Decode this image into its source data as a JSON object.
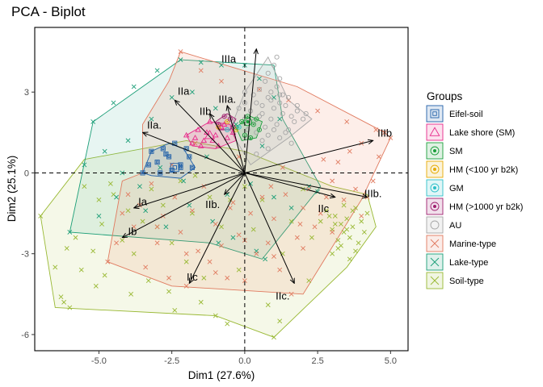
{
  "chart_data": {
    "type": "scatter",
    "title": "PCA - Biplot",
    "xlabel": "Dim1 (27.6%)",
    "ylabel": "Dim2 (25.1%)",
    "xlim": [
      -7.2,
      5.6
    ],
    "ylim": [
      -6.6,
      5.4
    ],
    "xticks": [
      -5.0,
      -2.5,
      0.0,
      2.5,
      5.0
    ],
    "xtick_labels": [
      "-5.0",
      "-2.5",
      "0.0",
      "2.5",
      "5.0"
    ],
    "yticks": [
      3,
      0,
      -3,
      -6
    ],
    "ytick_labels": [
      "3",
      "0",
      "-3",
      "-6"
    ],
    "grid": false,
    "reference_lines": [
      {
        "axis": "x",
        "value": 0,
        "style": "dashed"
      },
      {
        "axis": "y",
        "value": 0,
        "style": "dashed"
      }
    ],
    "legend": {
      "title": "Groups",
      "placement": "right",
      "entries": [
        {
          "label": "Eifel-soil",
          "color": "#1f5fa8",
          "marker": "square-dot"
        },
        {
          "label": "Lake shore (SM)",
          "color": "#e7298a",
          "marker": "triangle"
        },
        {
          "label": "SM",
          "color": "#1b9e3a",
          "marker": "circle-dot"
        },
        {
          "label": "HM (<100 yr b2k)",
          "color": "#e6ab02",
          "marker": "circle-dot"
        },
        {
          "label": "GM",
          "color": "#2cbfc8",
          "marker": "circle-dot"
        },
        {
          "label": "HM (>1000 yr b2k)",
          "color": "#9e1e6e",
          "marker": "circle-dot"
        },
        {
          "label": "AU",
          "color": "#a6a6a6",
          "marker": "circle"
        },
        {
          "label": "Marine-type",
          "color": "#e07a5f",
          "marker": "x"
        },
        {
          "label": "Lake-type",
          "color": "#1b9e77",
          "marker": "x"
        },
        {
          "label": "Soil-type",
          "color": "#98b832",
          "marker": "x"
        }
      ]
    },
    "hulls": [
      {
        "group": "Soil-type",
        "color": "#98b832",
        "fill": "#b8cc5a",
        "points": [
          [
            -5.5,
            0.5
          ],
          [
            -2.0,
            1.2
          ],
          [
            0.0,
            0.8
          ],
          [
            3.0,
            -0.5
          ],
          [
            4.2,
            -0.8
          ],
          [
            4.5,
            -2.0
          ],
          [
            3.5,
            -3.5
          ],
          [
            1.0,
            -6.1
          ],
          [
            -1.0,
            -5.3
          ],
          [
            -6.5,
            -5.0
          ],
          [
            -7.0,
            -1.6
          ]
        ]
      },
      {
        "group": "Lake-type",
        "color": "#1b9e77",
        "fill": "#57b8a0",
        "points": [
          [
            -5.2,
            1.9
          ],
          [
            -2.2,
            4.2
          ],
          [
            1.0,
            4.0
          ],
          [
            1.3,
            2.0
          ],
          [
            2.6,
            -0.5
          ],
          [
            0.6,
            -3.2
          ],
          [
            -1.2,
            -2.6
          ],
          [
            -6.0,
            -2.2
          ]
        ]
      },
      {
        "group": "Marine-type",
        "color": "#e07a5f",
        "fill": "#ef8a62",
        "points": [
          [
            -2.2,
            4.5
          ],
          [
            1.8,
            3.2
          ],
          [
            4.8,
            1.5
          ],
          [
            5.0,
            1.3
          ],
          [
            4.0,
            -1.0
          ],
          [
            2.0,
            -4.5
          ],
          [
            -2.5,
            -4.2
          ],
          [
            -4.7,
            -3.3
          ],
          [
            -4.2,
            -0.3
          ],
          [
            -3.5,
            0.0
          ],
          [
            -3.5,
            1.8
          ],
          [
            -2.6,
            3.4
          ]
        ]
      },
      {
        "group": "AU",
        "color": "#a6a6a6",
        "fill": "#bdbdbd",
        "points": [
          [
            0.8,
            4.3
          ],
          [
            1.5,
            2.7
          ],
          [
            2.3,
            2.0
          ],
          [
            1.5,
            1.3
          ],
          [
            0.2,
            0.3
          ],
          [
            -0.5,
            1.6
          ],
          [
            0.0,
            3.0
          ]
        ]
      },
      {
        "group": "Eifel-soil",
        "color": "#1f5fa8",
        "fill": "#4f7fc0",
        "points": [
          [
            -3.5,
            0.0
          ],
          [
            -3.2,
            0.8
          ],
          [
            -2.6,
            1.1
          ],
          [
            -2.1,
            0.9
          ],
          [
            -1.7,
            0.2
          ],
          [
            -2.2,
            -0.2
          ],
          [
            -3.2,
            -0.1
          ]
        ]
      },
      {
        "group": "Lake shore (SM)",
        "color": "#e7298a",
        "fill": "#e7298a",
        "points": [
          [
            -2.0,
            1.4
          ],
          [
            -1.2,
            1.9
          ],
          [
            -0.5,
            1.8
          ],
          [
            -0.3,
            1.2
          ],
          [
            -1.0,
            0.9
          ],
          [
            -1.8,
            1.0
          ]
        ]
      },
      {
        "group": "SM",
        "color": "#1b9e3a",
        "fill": "#1b9e3a",
        "points": [
          [
            -0.3,
            1.7
          ],
          [
            0.2,
            2.1
          ],
          [
            0.6,
            1.9
          ],
          [
            0.4,
            1.3
          ],
          [
            -0.1,
            1.2
          ]
        ]
      },
      {
        "group": "HM (>1000 yr b2k)",
        "color": "#9e1e6e",
        "fill": "#9e1e6e",
        "points": [
          [
            -1.0,
            1.9
          ],
          [
            -0.6,
            2.2
          ],
          [
            -0.3,
            2.0
          ],
          [
            -0.5,
            1.6
          ],
          [
            -0.9,
            1.6
          ]
        ]
      }
    ],
    "variables": [
      {
        "name": "IIIa",
        "x": 0.4,
        "y": 4.6,
        "label_x": -0.55,
        "label_y": 4.2
      },
      {
        "name": "IIa",
        "x": -2.4,
        "y": 2.7,
        "label_x": -2.1,
        "label_y": 3.0
      },
      {
        "name": "IIIa.",
        "x": -0.6,
        "y": 2.5,
        "label_x": -0.6,
        "label_y": 2.7
      },
      {
        "name": "IIb",
        "x": -1.2,
        "y": 2.2,
        "label_x": -1.35,
        "label_y": 2.25
      },
      {
        "name": "IIa.",
        "x": -3.5,
        "y": 1.5,
        "label_x": -3.1,
        "label_y": 1.75
      },
      {
        "name": "IIIb",
        "x": 4.4,
        "y": 1.2,
        "label_x": 4.8,
        "label_y": 1.45
      },
      {
        "name": "IIIb.",
        "x": 4.2,
        "y": -0.9,
        "label_x": 4.4,
        "label_y": -0.8
      },
      {
        "name": "IIc",
        "x": 3.1,
        "y": -0.9,
        "label_x": 2.7,
        "label_y": -1.35
      },
      {
        "name": "IIb.",
        "x": -0.7,
        "y": -0.8,
        "label_x": -1.1,
        "label_y": -1.2
      },
      {
        "name": "Ia",
        "x": -3.8,
        "y": -1.3,
        "label_x": -3.5,
        "label_y": -1.1
      },
      {
        "name": "Ib",
        "x": -4.2,
        "y": -2.4,
        "label_x": -3.85,
        "label_y": -2.2
      },
      {
        "name": "IIc.",
        "x": 1.7,
        "y": -4.1,
        "label_x": 1.3,
        "label_y": -4.6
      },
      {
        "name": "IIc",
        "x": -1.9,
        "y": -4.1,
        "label_x": -1.8,
        "label_y": -3.9
      }
    ],
    "series": [
      {
        "group": "Soil-type",
        "marker": "x",
        "color": "#98b832",
        "x": [
          -7.0,
          -6.5,
          -6.2,
          -6.0,
          -5.8,
          -5.5,
          -5.2,
          -5.0,
          -4.8,
          -4.5,
          -4.2,
          -4.0,
          -3.8,
          -3.5,
          -3.2,
          -3.0,
          -2.8,
          -2.5,
          -2.2,
          -2.0,
          -1.8,
          -1.5,
          -1.2,
          -1.0,
          -0.8,
          -0.5,
          -0.2,
          0.0,
          0.3,
          0.6,
          1.0,
          1.3,
          1.6,
          2.0,
          2.3,
          2.6,
          2.8,
          3.0,
          3.1,
          3.2,
          3.3,
          3.4,
          3.5,
          3.6,
          3.7,
          3.8,
          3.9,
          4.0,
          4.1,
          4.2,
          3.0,
          3.2,
          3.4,
          3.6,
          3.8,
          2.9,
          3.1,
          3.3,
          3.5,
          3.7,
          -6.3,
          -5.6,
          -4.9,
          -3.9,
          -2.4,
          -1.4,
          0.8,
          -4.6,
          -3.3,
          -6.1,
          -5.1,
          -2.6,
          -1.7,
          -0.6,
          2.2,
          1.2
        ],
        "y": [
          -1.6,
          -3.5,
          -4.8,
          -5.0,
          -2.4,
          -0.5,
          -2.9,
          -1.0,
          -3.8,
          -0.8,
          -2.5,
          -1.4,
          -3.0,
          -1.8,
          -0.6,
          -2.0,
          -1.2,
          -2.6,
          -0.3,
          -3.3,
          -1.5,
          -4.8,
          -0.9,
          -5.3,
          -2.0,
          -1.0,
          -3.6,
          -0.5,
          -2.1,
          -1.0,
          -6.1,
          -3.0,
          -1.8,
          -0.6,
          -2.4,
          -1.8,
          -1.4,
          -2.1,
          -1.6,
          -2.5,
          -1.9,
          -2.2,
          -1.7,
          -2.4,
          -2.0,
          -1.3,
          -2.6,
          -1.8,
          -2.2,
          -1.5,
          -3.0,
          -2.8,
          -1.2,
          -3.2,
          -2.9,
          -1.6,
          -1.9,
          -2.7,
          -2.1,
          -1.4,
          -4.6,
          -3.6,
          -1.9,
          -4.5,
          -5.1,
          -3.9,
          -4.9,
          -0.4,
          -4.0,
          -2.8,
          -4.2,
          -4.4,
          -0.1,
          -5.6,
          -4.0,
          -5.5
        ]
      },
      {
        "group": "Lake-type",
        "marker": "x",
        "color": "#1b9e77",
        "x": [
          -5.2,
          -4.5,
          -3.8,
          -3.0,
          -2.2,
          -1.5,
          -0.8,
          0.0,
          0.5,
          1.0,
          1.2,
          -4.8,
          -4.0,
          -3.2,
          -2.5,
          -1.8,
          -1.0,
          -0.3,
          0.6,
          -5.5,
          -4.2,
          -3.6,
          -2.9,
          -2.1,
          -1.3,
          -0.6,
          0.2,
          1.0,
          -6.0,
          -5.0,
          -4.4,
          -3.4,
          -2.7,
          -1.9,
          -1.1,
          -0.4,
          0.4,
          2.2,
          2.5,
          1.6,
          -0.9,
          0.7
        ],
        "y": [
          1.9,
          2.6,
          3.2,
          3.8,
          4.2,
          4.1,
          4.0,
          4.0,
          3.5,
          2.8,
          2.0,
          0.8,
          1.2,
          2.0,
          2.8,
          3.0,
          2.4,
          1.8,
          1.0,
          0.3,
          0.0,
          -0.5,
          0.2,
          -0.3,
          0.6,
          -0.8,
          -0.4,
          -0.9,
          -2.2,
          -1.6,
          -0.9,
          -1.4,
          -2.0,
          -1.2,
          -1.8,
          -2.4,
          -2.9,
          -0.5,
          -0.7,
          -1.3,
          -2.6,
          -3.2
        ]
      },
      {
        "group": "Marine-type",
        "marker": "x",
        "color": "#e07a5f",
        "x": [
          -4.7,
          -4.4,
          -4.2,
          -4.0,
          -3.8,
          -3.6,
          -3.4,
          -3.2,
          -3.0,
          -2.8,
          -2.6,
          -2.4,
          -2.2,
          -2.0,
          -1.8,
          -1.6,
          -1.4,
          -1.2,
          -1.0,
          -0.8,
          -0.6,
          -0.4,
          -0.2,
          0.0,
          0.2,
          0.4,
          0.6,
          0.8,
          1.0,
          1.2,
          1.4,
          1.6,
          1.8,
          2.0,
          2.2,
          2.4,
          2.6,
          2.8,
          3.0,
          3.2,
          3.4,
          3.6,
          3.8,
          4.0,
          4.2,
          4.4,
          4.6,
          4.8,
          5.0,
          -2.2,
          -1.5,
          -0.8,
          0.5,
          1.5,
          2.5,
          3.5,
          4.5,
          -3.0,
          -2.0,
          -1.0,
          0.0,
          1.0,
          2.0,
          3.0,
          4.0,
          -2.5,
          -0.5,
          0.9,
          1.9,
          2.7,
          -1.7,
          -0.2,
          1.3
        ],
        "y": [
          -3.3,
          -2.6,
          -1.5,
          -0.8,
          -2.0,
          -1.2,
          -3.5,
          -0.4,
          -2.6,
          -1.6,
          -3.9,
          -0.9,
          -2.2,
          -4.2,
          -1.4,
          -2.9,
          -0.5,
          -3.3,
          -1.9,
          -2.7,
          -3.9,
          -1.1,
          -2.3,
          -4.0,
          -1.5,
          -3.0,
          -0.9,
          -2.6,
          -1.7,
          -3.6,
          -0.8,
          -4.5,
          -2.4,
          -1.3,
          -0.6,
          -2.0,
          -1.5,
          -0.9,
          -0.3,
          0.4,
          -1.0,
          0.8,
          -0.6,
          1.1,
          -0.9,
          -0.3,
          0.6,
          1.5,
          1.3,
          4.5,
          3.8,
          3.4,
          3.1,
          2.7,
          2.3,
          1.9,
          1.6,
          -2.0,
          -3.0,
          -3.7,
          -2.5,
          -3.1,
          -2.8,
          -2.2,
          -1.6,
          0.3,
          -1.3,
          -0.5,
          -1.9,
          0.5,
          1.1,
          0.6,
          0.2
        ]
      },
      {
        "group": "AU",
        "marker": "circle",
        "color": "#a6a6a6",
        "x": [
          0.0,
          0.2,
          0.4,
          0.6,
          0.8,
          1.0,
          1.2,
          1.4,
          1.6,
          1.8,
          2.0,
          0.1,
          0.3,
          0.5,
          0.7,
          0.9,
          1.1,
          1.3,
          1.5,
          1.7,
          0.2,
          0.4,
          0.6,
          0.8,
          1.0,
          1.2,
          1.4,
          0.5,
          0.7,
          0.9,
          1.1,
          1.3,
          0.8,
          1.0,
          1.2,
          -0.4,
          -0.2,
          0.0,
          0.3,
          0.6,
          0.9,
          1.2,
          1.5,
          1.8,
          2.1,
          0.4,
          0.8,
          1.6,
          0.0,
          1.1
        ],
        "y": [
          2.0,
          2.3,
          2.6,
          2.2,
          2.8,
          2.4,
          2.9,
          2.5,
          2.1,
          2.3,
          2.0,
          1.6,
          1.9,
          2.1,
          1.7,
          2.0,
          1.8,
          2.2,
          1.6,
          1.9,
          1.3,
          1.5,
          1.2,
          1.4,
          1.6,
          1.3,
          1.5,
          3.1,
          3.4,
          3.0,
          3.2,
          2.9,
          3.7,
          4.0,
          3.5,
          1.7,
          2.4,
          2.6,
          2.9,
          2.5,
          2.7,
          2.6,
          2.8,
          2.5,
          2.2,
          0.7,
          0.9,
          1.1,
          3.0,
          4.3
        ]
      },
      {
        "group": "Eifel-soil",
        "marker": "square-dot",
        "color": "#1f5fa8",
        "x": [
          -3.5,
          -3.2,
          -3.0,
          -2.8,
          -2.6,
          -2.4,
          -2.2,
          -2.0,
          -1.8,
          -3.3,
          -2.9,
          -2.5,
          -2.2,
          -1.9,
          -2.7
        ],
        "y": [
          0.0,
          0.8,
          0.4,
          0.9,
          0.6,
          1.1,
          0.3,
          0.9,
          0.2,
          0.3,
          0.0,
          0.1,
          0.2,
          0.6,
          0.7
        ]
      },
      {
        "group": "Lake shore (SM)",
        "marker": "triangle",
        "color": "#e7298a",
        "x": [
          -2.0,
          -1.8,
          -1.6,
          -1.4,
          -1.2,
          -1.0,
          -0.8,
          -0.6,
          -0.4,
          -1.5,
          -1.1,
          -0.7,
          -1.3,
          -0.9,
          -1.7
        ],
        "y": [
          1.4,
          1.1,
          1.6,
          1.2,
          1.9,
          1.4,
          1.7,
          1.3,
          1.5,
          1.0,
          1.2,
          1.8,
          1.5,
          1.0,
          1.3
        ]
      },
      {
        "group": "SM",
        "marker": "circle-dot",
        "color": "#1b9e3a",
        "x": [
          -0.3,
          -0.1,
          0.1,
          0.3,
          0.5,
          0.0,
          0.2,
          0.4
        ],
        "y": [
          1.7,
          1.9,
          2.1,
          1.8,
          1.6,
          1.4,
          1.3,
          2.0
        ]
      },
      {
        "group": "HM (<100 yr b2k)",
        "marker": "circle-dot",
        "color": "#e6ab02",
        "x": [
          -0.9,
          -0.6,
          -0.3
        ],
        "y": [
          1.7,
          1.9,
          1.6
        ]
      },
      {
        "group": "GM",
        "marker": "circle-dot",
        "color": "#2cbfc8",
        "x": [
          -0.6,
          -0.2
        ],
        "y": [
          1.6,
          1.7
        ]
      },
      {
        "group": "HM (>1000 yr b2k)",
        "marker": "circle-dot",
        "color": "#9e1e6e",
        "x": [
          -0.9,
          -0.7,
          -0.5,
          -0.4
        ],
        "y": [
          1.8,
          2.1,
          2.0,
          1.7
        ]
      }
    ],
    "centroids": [
      {
        "group": "Eifel-soil",
        "marker": "square-dot",
        "color": "#1f5fa8",
        "x": -2.4,
        "y": 0.2
      },
      {
        "group": "Lake shore (SM)",
        "marker": "triangle",
        "color": "#e7298a",
        "x": -1.2,
        "y": 1.4
      },
      {
        "group": "SM",
        "marker": "circle-dot",
        "color": "#1b9e3a",
        "x": 0.1,
        "y": 1.9
      }
    ]
  }
}
